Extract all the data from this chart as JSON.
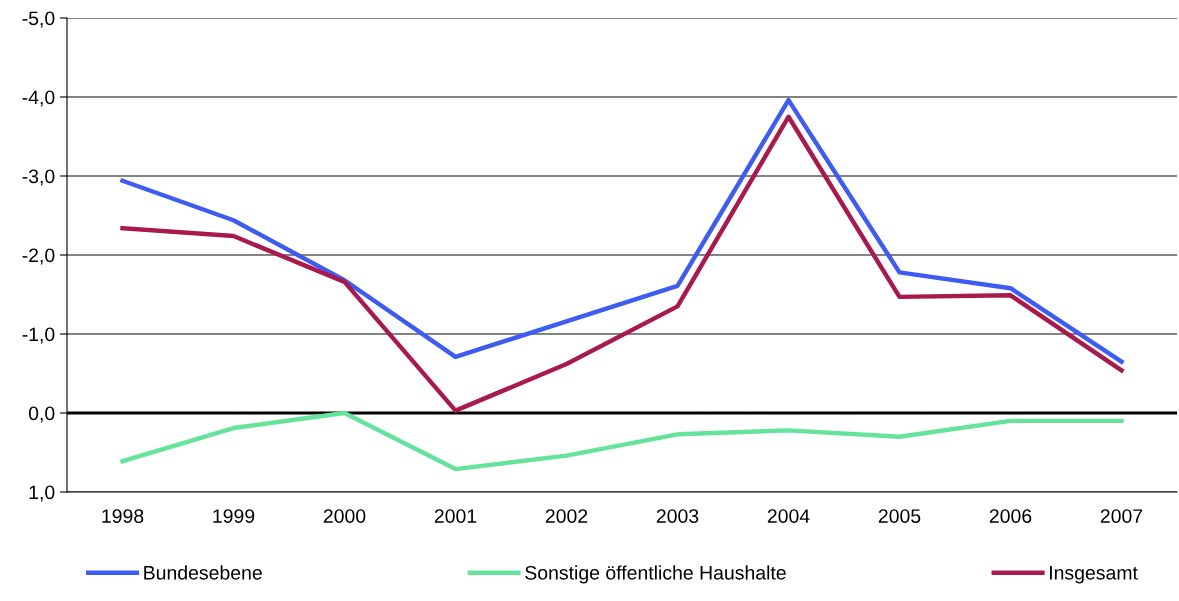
{
  "chart_data": {
    "type": "line",
    "categories": [
      "1998",
      "1999",
      "2000",
      "2001",
      "2002",
      "2003",
      "2004",
      "2005",
      "2006",
      "2007"
    ],
    "series": [
      {
        "name": "Bundesebene",
        "color": "#3f5cf0",
        "values": [
          -2.94,
          -2.44,
          -1.68,
          -0.71,
          -1.16,
          -1.61,
          -3.96,
          -1.78,
          -1.58,
          -0.65
        ]
      },
      {
        "name": "Sonstige öffentliche Haushalte",
        "color": "#66e39a",
        "values": [
          0.61,
          0.19,
          0.0,
          0.71,
          0.54,
          0.27,
          0.22,
          0.3,
          0.1,
          0.1
        ]
      },
      {
        "name": "Insgesamt",
        "color": "#a81a4e",
        "values": [
          -2.34,
          -2.24,
          -1.66,
          -0.03,
          -0.62,
          -1.35,
          -3.75,
          -1.47,
          -1.49,
          -0.54
        ]
      }
    ],
    "ylim": [
      1.0,
      -5.0
    ],
    "yticks": [
      {
        "value": -5,
        "label": "-5,0"
      },
      {
        "value": -4,
        "label": "-4,0"
      },
      {
        "value": -3,
        "label": "-3,0"
      },
      {
        "value": -2,
        "label": "-2,0"
      },
      {
        "value": -1,
        "label": "-1,0"
      },
      {
        "value": 0,
        "label": "0,0"
      },
      {
        "value": 1,
        "label": "1,0"
      }
    ],
    "grid": "y",
    "ref_lines": [
      {
        "axis": "y",
        "value": 0,
        "color": "#000000"
      }
    ],
    "legend": "bottom",
    "marker": "none",
    "line_style": "solid"
  }
}
